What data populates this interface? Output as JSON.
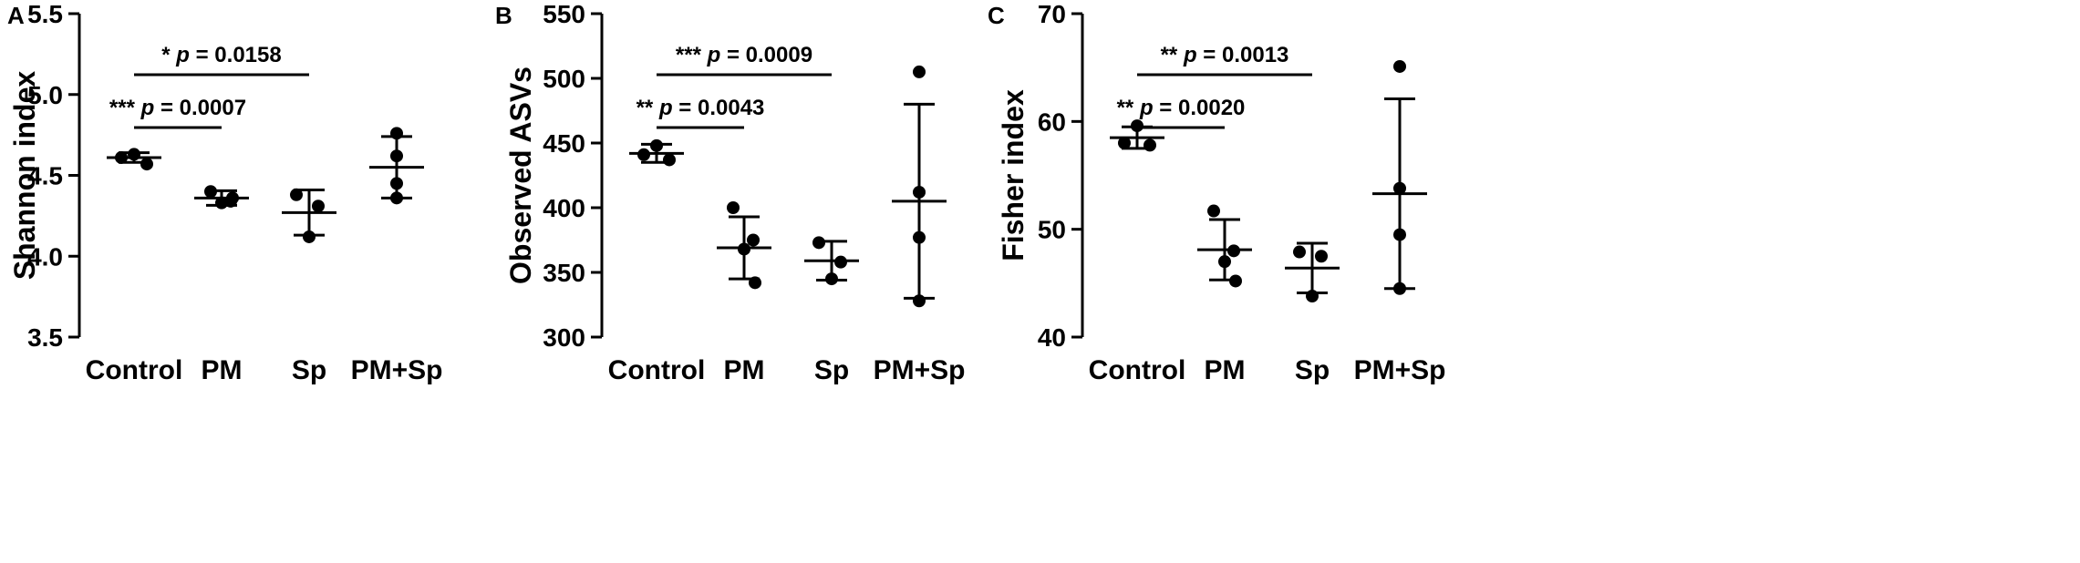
{
  "chart_data": [
    {
      "type": "dotplot",
      "panel": "A",
      "y_label": "Shannon index",
      "categories": [
        "Control",
        "PM",
        "Sp",
        "PM+Sp"
      ],
      "groups": [
        {
          "values": [
            4.63,
            4.61,
            4.57
          ],
          "mean": 4.61,
          "sd": 0.03
        },
        {
          "values": [
            4.4,
            4.34,
            4.33,
            4.36
          ],
          "mean": 4.36,
          "sd": 0.045
        },
        {
          "values": [
            4.38,
            4.31,
            4.12
          ],
          "mean": 4.27,
          "sd": 0.14
        },
        {
          "values": [
            4.76,
            4.62,
            4.45,
            4.36
          ],
          "mean": 4.55,
          "sd": 0.19
        }
      ],
      "color": "#000000",
      "ylim": [
        3.5,
        5.5
      ],
      "yticks": [
        3.5,
        {
          "value": 4,
          "label": "4.0"
        },
        4.5,
        {
          "value": 5,
          "label": "5.0"
        },
        5.5
      ],
      "annotations": [
        {
          "stars": "***",
          "p": "p",
          "value": "= 0.0007",
          "between": [
            0,
            1
          ]
        },
        {
          "stars": "*",
          "p": "p",
          "value": "= 0.0158",
          "between": [
            0,
            2
          ]
        }
      ]
    },
    {
      "type": "dotplot",
      "panel": "B",
      "y_label": "Observed ASVs",
      "categories": [
        "Control",
        "PM",
        "Sp",
        "PM+Sp"
      ],
      "groups": [
        {
          "values": [
            448,
            441,
            437
          ],
          "mean": 442,
          "sd": 7
        },
        {
          "values": [
            400,
            375,
            368,
            342
          ],
          "mean": 369,
          "sd": 24
        },
        {
          "values": [
            373,
            358,
            345
          ],
          "mean": 359,
          "sd": 15
        },
        {
          "values": [
            505,
            412,
            377,
            328
          ],
          "mean": 405,
          "sd": 75
        }
      ],
      "color": "#000000",
      "ylim": [
        300,
        550
      ],
      "yticks": [
        300,
        350,
        400,
        450,
        500,
        550
      ],
      "annotations": [
        {
          "stars": "**",
          "p": "p",
          "value": "= 0.0043",
          "between": [
            0,
            1
          ]
        },
        {
          "stars": "***",
          "p": "p",
          "value": "= 0.0009",
          "between": [
            0,
            2
          ]
        }
      ]
    },
    {
      "type": "dotplot",
      "panel": "C",
      "y_label": "Fisher index",
      "categories": [
        "Control",
        "PM",
        "Sp",
        "PM+Sp"
      ],
      "groups": [
        {
          "values": [
            59.6,
            58.0,
            57.8
          ],
          "mean": 58.5,
          "sd": 1.0
        },
        {
          "values": [
            51.7,
            48.0,
            47.0,
            45.2
          ],
          "mean": 48.1,
          "sd": 2.8
        },
        {
          "values": [
            47.9,
            47.5,
            43.8
          ],
          "mean": 46.4,
          "sd": 2.3
        },
        {
          "values": [
            65.1,
            53.8,
            49.5,
            44.5
          ],
          "mean": 53.3,
          "sd": 8.8
        }
      ],
      "color": "#000000",
      "ylim": [
        40,
        70
      ],
      "yticks": [
        40,
        50,
        60,
        70
      ],
      "annotations": [
        {
          "stars": "**",
          "p": "p",
          "value": "= 0.0020",
          "between": [
            0,
            1
          ]
        },
        {
          "stars": "**",
          "p": "p",
          "value": "= 0.0013",
          "between": [
            0,
            2
          ]
        }
      ]
    }
  ]
}
